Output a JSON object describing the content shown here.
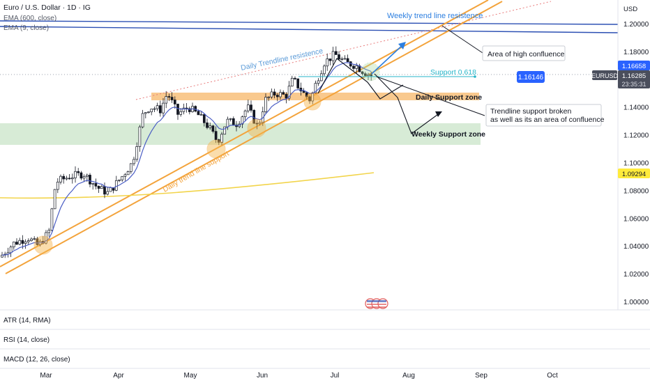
{
  "header": {
    "title": "Euro / U.S. Dollar · 1D · IG",
    "indicators": [
      "EMA (600, close)",
      "EMA (9, close)"
    ]
  },
  "price_scale": {
    "currency": "USD",
    "ticks": [
      "1.20000",
      "1.18000",
      "1.16000",
      "1.14000",
      "1.12000",
      "1.10000",
      "1.08000",
      "1.06000",
      "1.04000",
      "1.02000",
      "1.00000"
    ],
    "badges": {
      "last_price": "1.16658",
      "symbol": "EURUSD",
      "current_price": "1.16285",
      "countdown": "23:35:31",
      "ema600": "1.09294"
    }
  },
  "time_axis": {
    "ticks": [
      "Mar",
      "Apr",
      "May",
      "Jun",
      "Jul",
      "Aug",
      "Sep",
      "Oct"
    ]
  },
  "panes": [
    "ATR (14, RMA)",
    "RSI (14, close)",
    "MACD (12, 26, close)"
  ],
  "annotations": {
    "weekly_trendline": "Weekly trend line resistence",
    "daily_trendline_res": "Daily Trendline resistence",
    "daily_trendline_support": "Daily trend line support",
    "area_high_confluence": "Area of high confluence",
    "support_618": "Support 0.618",
    "support_618_value": "1.16146",
    "daily_support_zone": "Daily Support zone",
    "trendline_broken_line1": "Trendline support broken",
    "trendline_broken_line2": "as well as its an area of confluence",
    "weekly_support_zone": "Weekly Support zone"
  },
  "colors": {
    "background": "#ffffff",
    "bull": "#131722",
    "bear": "#131722",
    "ema9": "#4a5dc4",
    "ema600": "#f2d44a",
    "trendline_orange": "#f3a33b",
    "daily_zone": "#f7b560",
    "weekly_zone": "#cde8cc",
    "weekly_trendline": "#2b4fb3",
    "support_618": "#26b5c9",
    "annotation_blue": "#2d7fe0",
    "badge_blue": "#2962ff",
    "badge_yellow": "#ffeb3b",
    "badge_dark": "#4a4e5c"
  },
  "chart_data": {
    "type": "candlestick",
    "symbol": "EURUSD",
    "timeframe": "1D",
    "ylim": [
      0.995,
      1.205
    ],
    "x_ticks": [
      "Mar",
      "Apr",
      "May",
      "Jun",
      "Jul",
      "Aug",
      "Sep",
      "Oct"
    ],
    "series": [
      {
        "name": "EMA (600, close)",
        "start": 1.0855,
        "end": 1.0935
      },
      {
        "name": "EMA (9, close)",
        "values": [
          1.032,
          1.04,
          1.05,
          1.09,
          1.12,
          1.135,
          1.136,
          1.12,
          1.128,
          1.14,
          1.15,
          1.168,
          1.165
        ]
      }
    ],
    "zones": [
      {
        "name": "Daily Support zone",
        "low": 1.1445,
        "high": 1.149
      },
      {
        "name": "Weekly Support zone",
        "low": 1.113,
        "high": 1.1285
      }
    ],
    "levels": [
      {
        "name": "Support 0.618",
        "value": 1.16146
      }
    ],
    "last_close": 1.16285,
    "last_price": 1.16658,
    "ema600_value": 1.09294
  }
}
